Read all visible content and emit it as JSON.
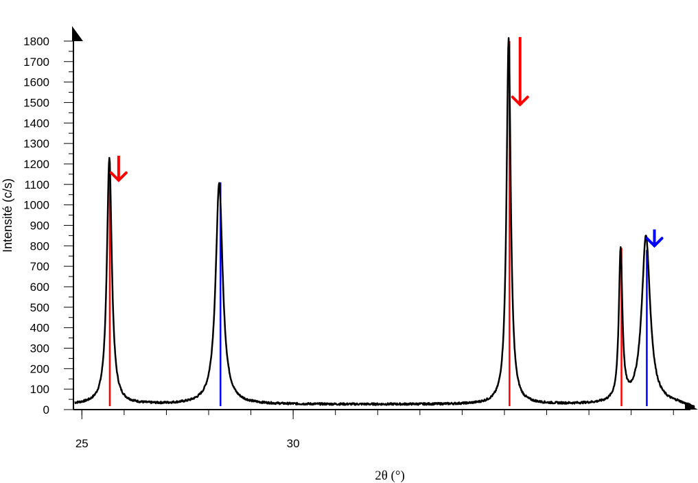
{
  "chart_data": {
    "type": "line",
    "xlabel": "2θ (°)",
    "ylabel": "Intensité (c/s)",
    "xlim": [
      24.8,
      39.5
    ],
    "ylim": [
      0,
      1850
    ],
    "x_tick_labels": [
      25,
      30
    ],
    "x_minor_ticks": [
      25,
      26,
      27,
      28,
      29,
      30,
      31,
      32,
      33,
      34,
      35,
      36,
      37,
      38,
      39
    ],
    "y_ticks": [
      0,
      100,
      200,
      300,
      400,
      500,
      600,
      700,
      800,
      900,
      1000,
      1100,
      1200,
      1300,
      1400,
      1500,
      1600,
      1700,
      1800
    ],
    "grid": false,
    "series": [
      {
        "color": "#000000",
        "baseline": 25,
        "peaks": [
          {
            "x": 25.65,
            "height": 1205,
            "width": 0.07
          },
          {
            "x": 28.25,
            "height": 1080,
            "width": 0.1
          },
          {
            "x": 35.1,
            "height": 1790,
            "width": 0.06
          },
          {
            "x": 37.75,
            "height": 740,
            "width": 0.05
          },
          {
            "x": 38.35,
            "height": 820,
            "width": 0.12
          }
        ],
        "tail": {
          "x": 39.5,
          "y": 5
        }
      }
    ],
    "reference_lines": [
      {
        "x": 25.66,
        "y": 1215,
        "color": "#ff0000"
      },
      {
        "x": 28.28,
        "y": 1110,
        "color": "#0000ff"
      },
      {
        "x": 35.12,
        "y": 1800,
        "color": "#ff0000"
      },
      {
        "x": 37.77,
        "y": 790,
        "color": "#ff0000"
      },
      {
        "x": 38.37,
        "y": 780,
        "color": "#0000ff"
      }
    ],
    "arrows": [
      {
        "x": 25.87,
        "y_top": 1240,
        "y_tip": 1120,
        "color": "#ff0000"
      },
      {
        "x": 35.37,
        "y_top": 1820,
        "y_tip": 1490,
        "color": "#ff0000"
      },
      {
        "x": 38.55,
        "y_top": 880,
        "y_tip": 800,
        "color": "#0000ff"
      }
    ]
  }
}
